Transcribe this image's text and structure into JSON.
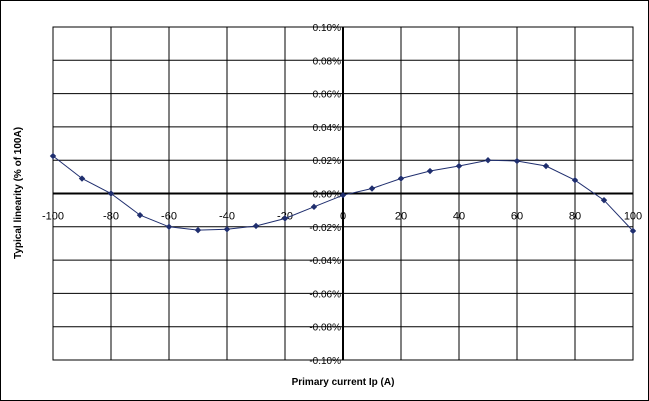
{
  "chart_data": {
    "type": "line",
    "title": "",
    "xlabel": "Primary current Ip (A)",
    "ylabel": "Typical linearity (% of 100A)",
    "xlim": [
      -100,
      100
    ],
    "ylim": [
      -0.1,
      0.1
    ],
    "grid": true,
    "x_ticks": [
      "-100",
      "-80",
      "-60",
      "-40",
      "-20",
      "0",
      "20",
      "40",
      "60",
      "80",
      "100"
    ],
    "y_ticks": [
      "0.10%",
      "0.08%",
      "0.06%",
      "0.04%",
      "0.02%",
      "0.00%",
      "-0.02%",
      "-0.04%",
      "-0.06%",
      "-0.08%",
      "-0.10%"
    ],
    "series": [
      {
        "color": "#1f2e6e",
        "x": [
          -100,
          -90,
          -80,
          -70,
          -60,
          -50,
          -40,
          -30,
          -20,
          -10,
          0,
          10,
          20,
          30,
          40,
          50,
          60,
          70,
          80,
          90,
          100
        ],
        "y": [
          0.0225,
          0.009,
          0.0,
          -0.013,
          -0.02,
          -0.022,
          -0.0215,
          -0.0195,
          -0.015,
          -0.008,
          -0.001,
          0.003,
          0.009,
          0.0135,
          0.0165,
          0.02,
          0.0195,
          0.0165,
          0.008,
          -0.004,
          -0.0225
        ]
      }
    ]
  }
}
